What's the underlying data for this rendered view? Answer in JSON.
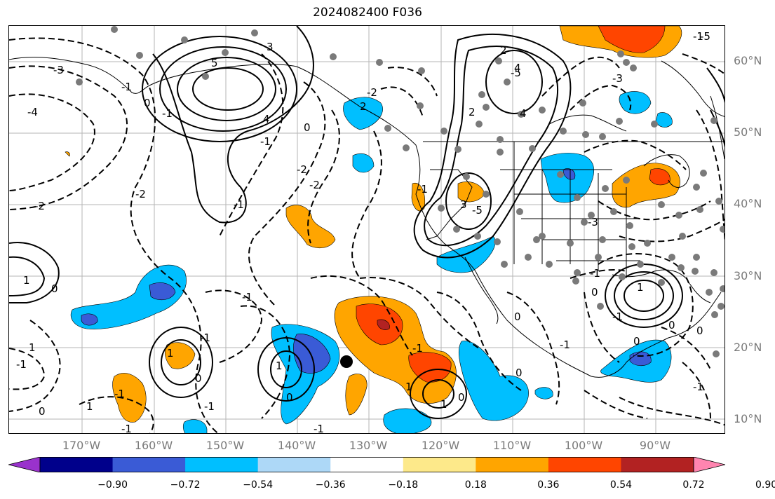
{
  "title": "2024082400 F036",
  "lat_labels": [
    "60°N",
    "50°N",
    "40°N",
    "30°N",
    "20°N",
    "10°N"
  ],
  "lon_labels": [
    "170°W",
    "160°W",
    "150°W",
    "140°W",
    "130°W",
    "120°W",
    "110°W",
    "100°W",
    "90°W"
  ],
  "colorbar": {
    "ticks": [
      "−0.90",
      "−0.72",
      "−0.54",
      "−0.36",
      "−0.18",
      "0.18",
      "0.36",
      "0.54",
      "0.72",
      "0.90"
    ],
    "colors": [
      "#9932cc",
      "#00008b",
      "#3a5bd6",
      "#00bfff",
      "#add8f7",
      "#ffffff",
      "#fde98a",
      "#ffa500",
      "#ff4500",
      "#b22222",
      "#ff85b0"
    ]
  },
  "contour_labels": [
    "-3",
    "4",
    "-4",
    "-1",
    "0",
    "-1",
    "3",
    "5",
    "-2",
    "-2",
    "-2",
    "4",
    "-2",
    "0",
    "-1",
    "2",
    "2",
    "3",
    "4",
    "-1",
    "-3",
    "-5",
    "1",
    "1",
    "0",
    "-1",
    "-1",
    "0",
    "-1",
    "0",
    "1",
    "-1",
    "-1",
    "0",
    "1",
    "0",
    "-1",
    "1",
    "-1",
    "-1",
    "1",
    "0",
    "-1",
    "-1",
    "0",
    "-1",
    "1",
    "1",
    "-2",
    "-5",
    "-1",
    "-5",
    "2",
    "-3",
    "-1",
    "0",
    "0",
    "0",
    "-1",
    "0"
  ]
}
